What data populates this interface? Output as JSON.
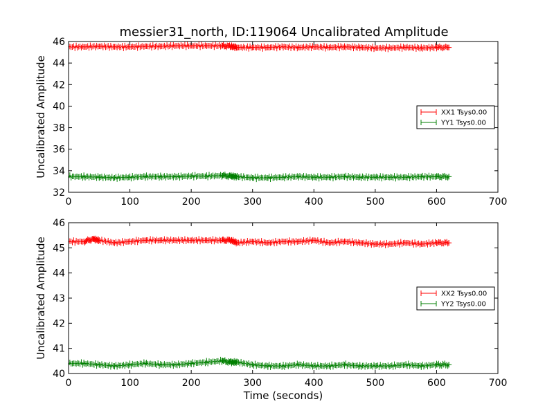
{
  "figure_title": "messier31_north, ID:119064 Uncalibrated Amplitude",
  "colors": {
    "red": "#ff0000",
    "green": "#007f00"
  },
  "chart_data": [
    {
      "type": "line",
      "ylabel": "Uncalibrated Amplitude",
      "xlabel": "",
      "xlim": [
        0,
        700
      ],
      "ylim": [
        32,
        46
      ],
      "xticks": [
        0,
        100,
        200,
        300,
        400,
        500,
        600,
        700
      ],
      "yticks": [
        32,
        34,
        36,
        38,
        40,
        42,
        44,
        46
      ],
      "legend_position": "center-right",
      "series": [
        {
          "name": "XX1 Tsys0.00",
          "color": "#ff0000",
          "x": [
            0,
            25,
            50,
            75,
            100,
            125,
            150,
            175,
            200,
            225,
            250,
            265,
            275,
            300,
            325,
            350,
            375,
            400,
            425,
            450,
            475,
            500,
            525,
            550,
            575,
            600,
            620
          ],
          "y": [
            45.5,
            45.5,
            45.55,
            45.5,
            45.5,
            45.55,
            45.55,
            45.6,
            45.6,
            45.6,
            45.6,
            45.55,
            45.45,
            45.45,
            45.45,
            45.5,
            45.45,
            45.5,
            45.45,
            45.5,
            45.45,
            45.4,
            45.4,
            45.45,
            45.4,
            45.45,
            45.45
          ]
        },
        {
          "name": "YY1 Tsys0.00",
          "color": "#007f00",
          "x": [
            0,
            25,
            50,
            75,
            100,
            125,
            150,
            175,
            200,
            225,
            250,
            265,
            275,
            300,
            325,
            350,
            375,
            400,
            425,
            450,
            475,
            500,
            525,
            550,
            575,
            600,
            620
          ],
          "y": [
            33.45,
            33.45,
            33.4,
            33.35,
            33.4,
            33.45,
            33.45,
            33.45,
            33.5,
            33.5,
            33.55,
            33.5,
            33.45,
            33.35,
            33.35,
            33.4,
            33.45,
            33.4,
            33.4,
            33.45,
            33.4,
            33.4,
            33.4,
            33.4,
            33.45,
            33.45,
            33.45
          ]
        }
      ]
    },
    {
      "type": "line",
      "ylabel": "Uncalibrated Amplitude",
      "xlabel": "Time (seconds)",
      "xlim": [
        0,
        700
      ],
      "ylim": [
        40,
        46
      ],
      "xticks": [
        0,
        100,
        200,
        300,
        400,
        500,
        600,
        700
      ],
      "yticks": [
        40,
        41,
        42,
        43,
        44,
        45,
        46
      ],
      "legend_position": "center-right",
      "series": [
        {
          "name": "XX2 Tsys0.00",
          "color": "#ff0000",
          "x": [
            0,
            25,
            40,
            50,
            75,
            100,
            125,
            150,
            175,
            200,
            225,
            250,
            265,
            275,
            300,
            325,
            350,
            375,
            400,
            425,
            450,
            475,
            500,
            525,
            550,
            575,
            600,
            620
          ],
          "y": [
            45.25,
            45.25,
            45.35,
            45.3,
            45.2,
            45.25,
            45.3,
            45.3,
            45.3,
            45.3,
            45.3,
            45.3,
            45.3,
            45.2,
            45.25,
            45.2,
            45.25,
            45.25,
            45.3,
            45.2,
            45.25,
            45.2,
            45.15,
            45.15,
            45.2,
            45.15,
            45.2,
            45.2
          ]
        },
        {
          "name": "YY2 Tsys0.00",
          "color": "#007f00",
          "x": [
            0,
            25,
            50,
            75,
            100,
            125,
            150,
            175,
            200,
            225,
            250,
            265,
            275,
            300,
            325,
            350,
            375,
            400,
            425,
            450,
            475,
            500,
            525,
            550,
            575,
            600,
            620
          ],
          "y": [
            40.4,
            40.4,
            40.35,
            40.3,
            40.35,
            40.4,
            40.35,
            40.35,
            40.4,
            40.45,
            40.5,
            40.45,
            40.45,
            40.35,
            40.3,
            40.3,
            40.35,
            40.3,
            40.3,
            40.35,
            40.3,
            40.3,
            40.3,
            40.35,
            40.3,
            40.35,
            40.35
          ]
        }
      ]
    }
  ]
}
